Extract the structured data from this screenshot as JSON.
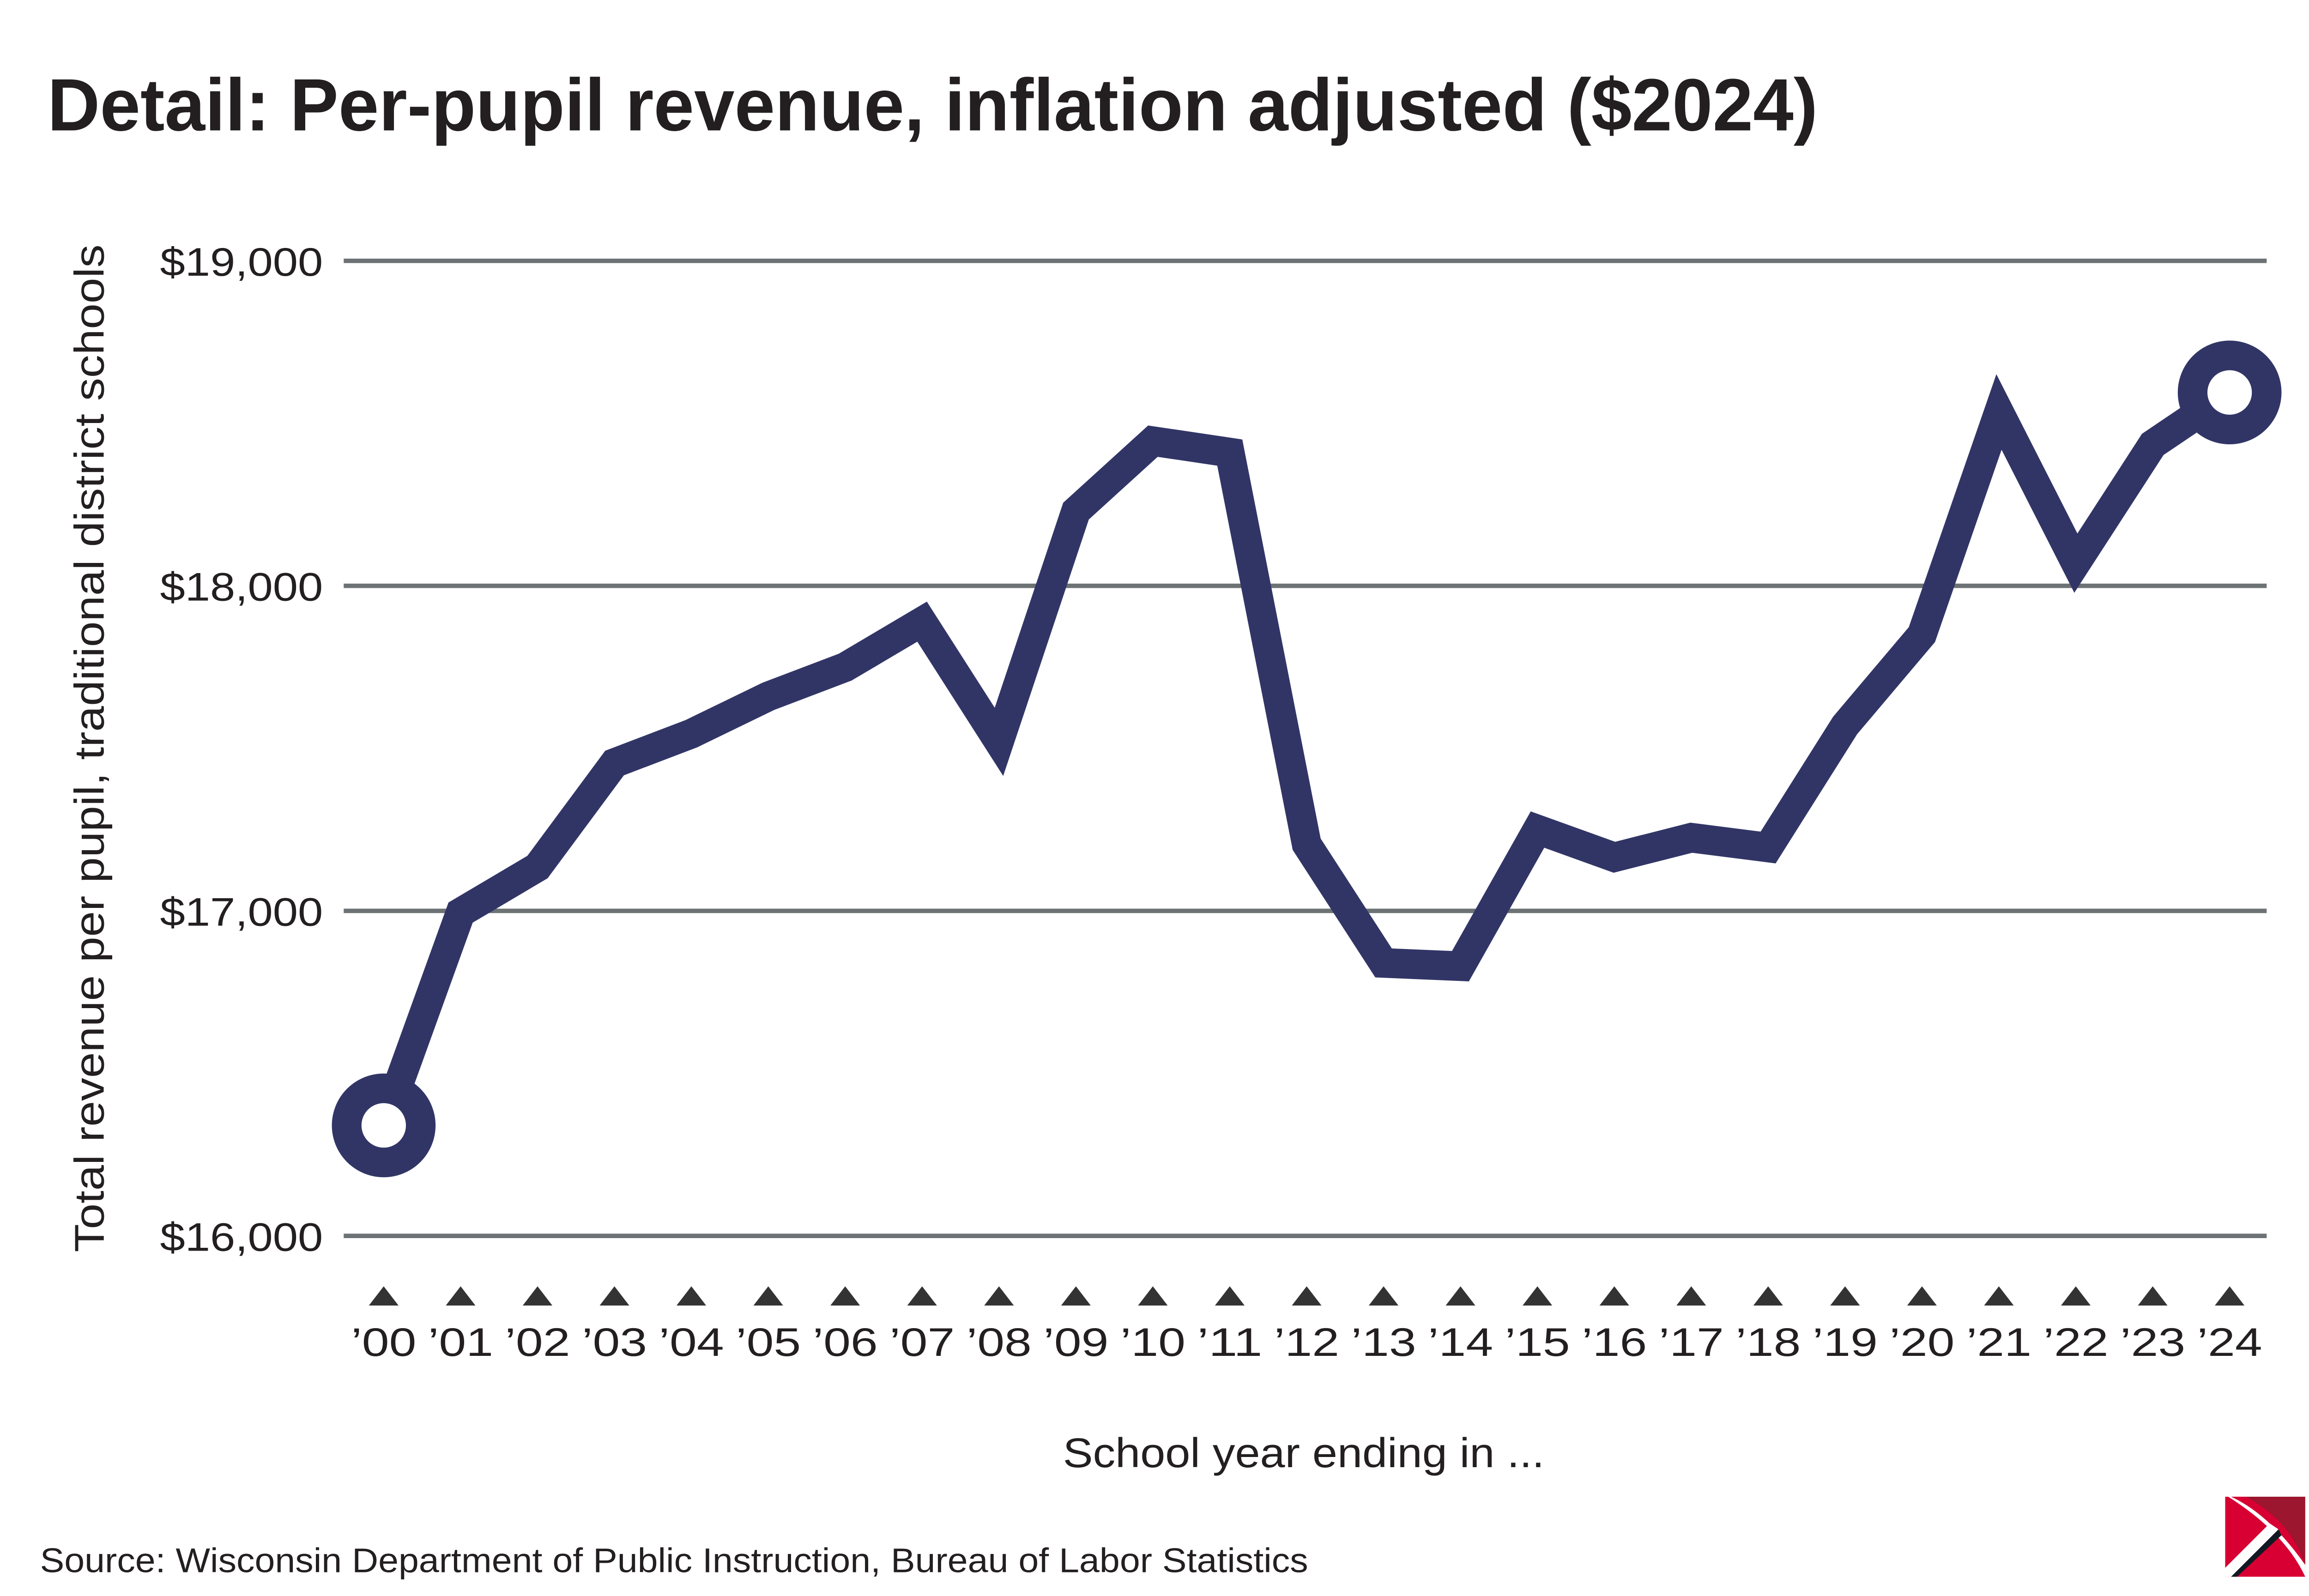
{
  "title": "Detail: Per-pupil revenue, inflation adjusted ($2024)",
  "source": "Source: Wisconsin Department of Public Instruction, Bureau of Labor Statistics",
  "colors": {
    "line": "#313566",
    "grid": "#6d7275",
    "marker": "#333333",
    "logo_red": "#d80032",
    "logo_dark_red": "#9b162e"
  },
  "chart_data": {
    "type": "line",
    "title": "Detail: Per-pupil revenue, inflation adjusted ($2024)",
    "xlabel": "School year ending in ...",
    "ylabel": "Total revenue per pupil, traditional district schools",
    "ylim": [
      16000,
      19000
    ],
    "yticks": [
      16000,
      17000,
      18000,
      19000
    ],
    "ytick_labels": [
      "$16,000",
      "$17,000",
      "$18,000",
      "$19,000"
    ],
    "grid": true,
    "categories": [
      "’00",
      "’01",
      "’02",
      "’03",
      "’04",
      "’05",
      "’06",
      "’07",
      "’08",
      "’09",
      "’10",
      "’11",
      "’12",
      "’13",
      "’14",
      "’15",
      "’16",
      "’17",
      "’18",
      "’19",
      "’20",
      "’21",
      "’22",
      "’23",
      "’24"
    ],
    "series": [
      {
        "name": "Per-pupil revenue",
        "values": [
          16340,
          16995,
          17135,
          17455,
          17545,
          17660,
          17750,
          17890,
          17520,
          18230,
          18445,
          18410,
          17205,
          16840,
          16830,
          17250,
          17165,
          17225,
          17195,
          17570,
          17850,
          18535,
          18070,
          18435,
          18595
        ]
      }
    ]
  }
}
